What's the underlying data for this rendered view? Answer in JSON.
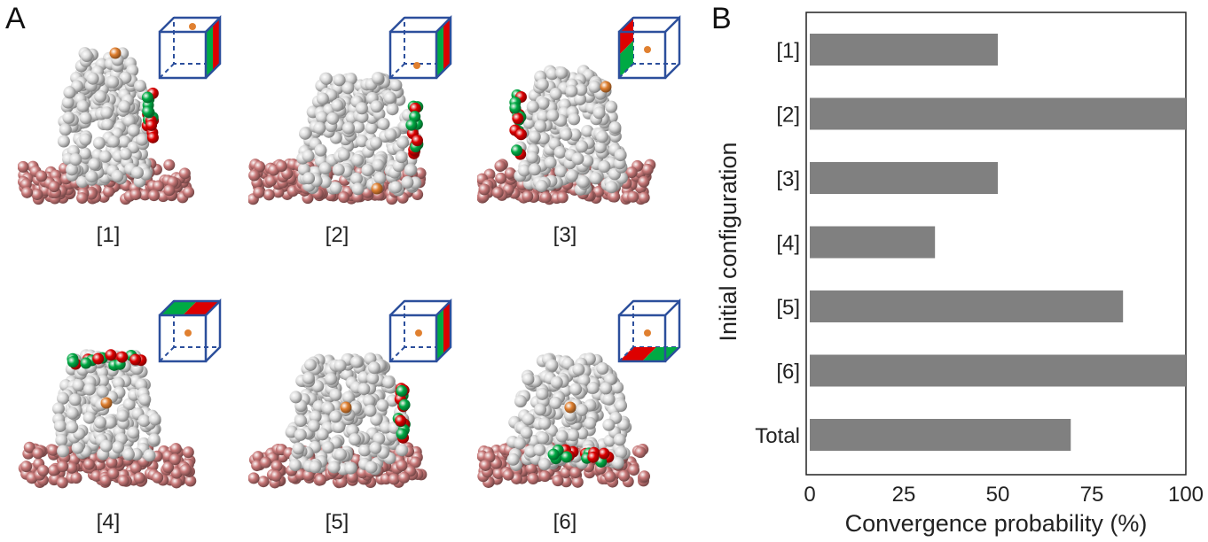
{
  "panel_a": {
    "letter": "A",
    "snapshots": [
      {
        "label": "[1]",
        "patch": "right-face",
        "dot": "top"
      },
      {
        "label": "[2]",
        "patch": "right-face",
        "dot": "bottom-center"
      },
      {
        "label": "[3]",
        "patch": "left-face",
        "dot": "center"
      },
      {
        "label": "[4]",
        "patch": "top-face",
        "dot": "center"
      },
      {
        "label": "[5]",
        "patch": "right-face",
        "dot": "center"
      },
      {
        "label": "[6]",
        "patch": "bottom-face",
        "dot": "center"
      }
    ]
  },
  "panel_b": {
    "letter": "B"
  },
  "chart_data": {
    "type": "bar",
    "orientation": "horizontal",
    "categories": [
      "[1]",
      "[2]",
      "[3]",
      "[4]",
      "[5]",
      "[6]",
      "Total"
    ],
    "values": [
      50,
      100,
      50,
      33.3,
      83.3,
      100,
      69.4
    ],
    "xlabel": "Convergence probability (%)",
    "ylabel": "Initial configuration",
    "xlim": [
      0,
      100
    ],
    "xticks": [
      0,
      25,
      50,
      75,
      100
    ],
    "bar_color": "#808080",
    "grid": false
  },
  "colors": {
    "membrane": "#c87878",
    "protein": "#dcdcdc",
    "red_patch": "#dd0000",
    "green_patch": "#00aa44",
    "orange": "#e08030",
    "box_edge": "#2c4f9c"
  }
}
